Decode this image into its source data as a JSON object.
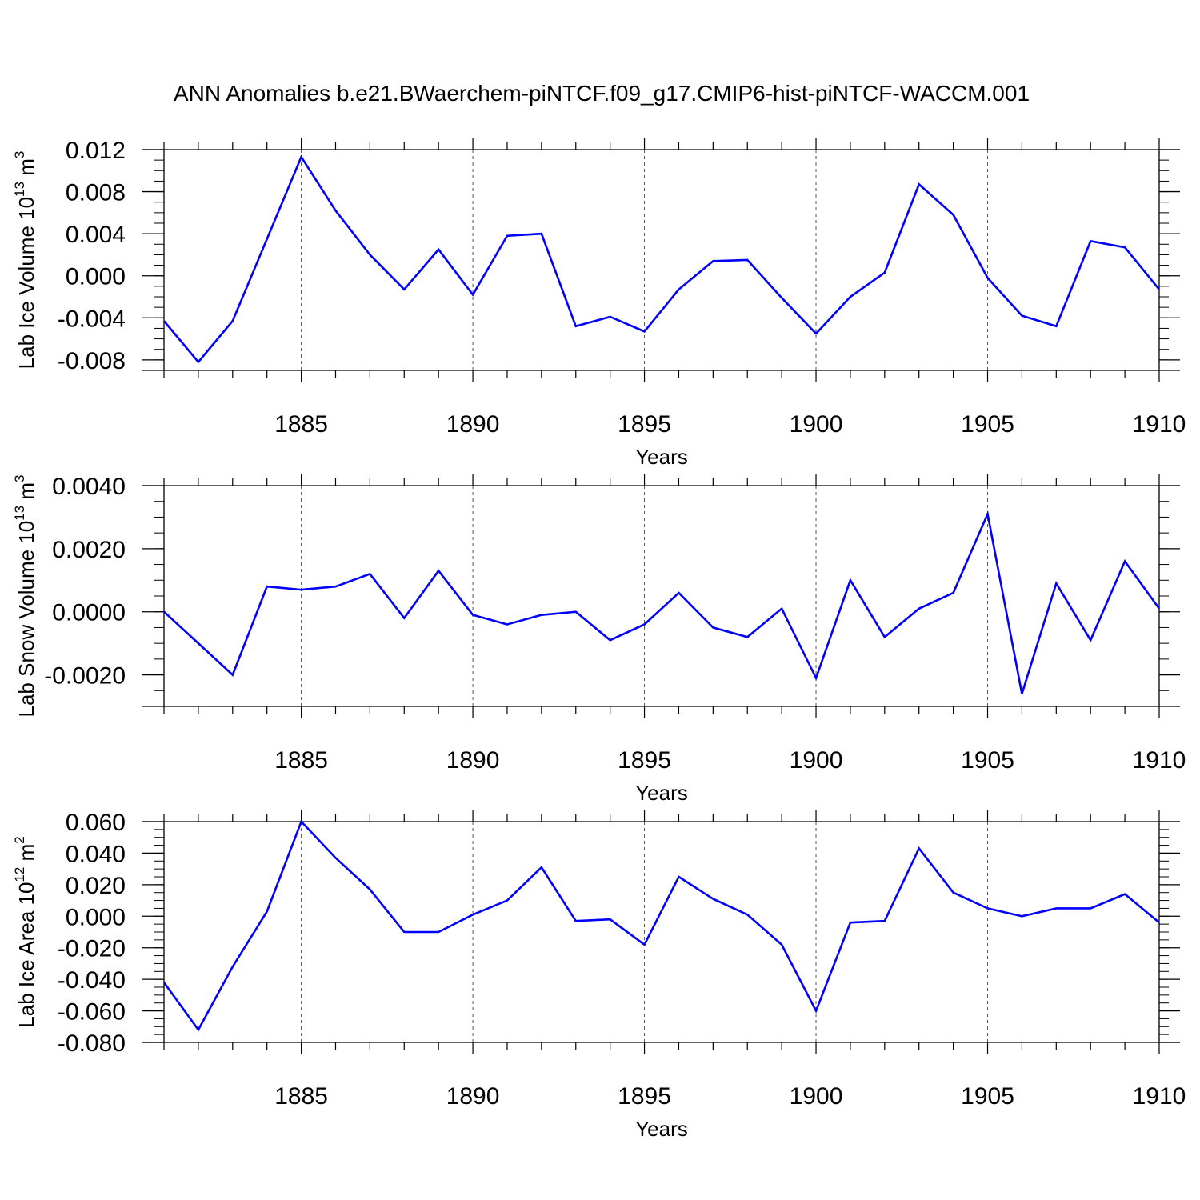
{
  "figure": {
    "title": "ANN Anomalies b.e21.BWaerchem-piNTCF.f09_g17.CMIP6-hist-piNTCF-WACCM.001",
    "colors": {
      "line": "#0000ff",
      "axes": "#000000",
      "grid": "#555555",
      "background": "#ffffff"
    }
  },
  "chart_data": [
    {
      "type": "line",
      "title": "",
      "xlabel": "Years",
      "ylabel": "Lab Ice Volume 10",
      "ylabel_exp": "13",
      "ylabel_unit": " m",
      "ylabel_unit_exp": "3",
      "xlim": [
        1881,
        1910
      ],
      "ylim": [
        -0.009,
        0.012
      ],
      "xticks": [
        1885,
        1890,
        1895,
        1900,
        1905,
        1910
      ],
      "xtick_labels": [
        "1885",
        "1890",
        "1895",
        "1900",
        "1905",
        "1910"
      ],
      "yticks": [
        -0.008,
        -0.004,
        0.0,
        0.004,
        0.008,
        0.012
      ],
      "ytick_labels": [
        "-0.008",
        "-0.004",
        "0.000",
        "0.004",
        "0.008",
        "0.012"
      ],
      "yminor_step": 0.001,
      "gridlines_x": [
        1885,
        1890,
        1895,
        1900,
        1905
      ],
      "x": [
        1881,
        1882,
        1883,
        1884,
        1885,
        1886,
        1887,
        1888,
        1889,
        1890,
        1891,
        1892,
        1893,
        1894,
        1895,
        1896,
        1897,
        1898,
        1899,
        1900,
        1901,
        1902,
        1903,
        1904,
        1905,
        1906,
        1907,
        1908,
        1909,
        1910
      ],
      "series": [
        {
          "name": "Lab Ice Volume",
          "values": [
            -0.0043,
            -0.0082,
            -0.0043,
            0.0035,
            0.0113,
            0.0062,
            0.002,
            -0.0013,
            0.0025,
            -0.0018,
            0.0038,
            0.004,
            -0.0048,
            -0.0039,
            -0.0053,
            -0.0013,
            0.0014,
            0.0015,
            -0.0021,
            -0.0055,
            -0.002,
            0.0003,
            0.0087,
            0.0058,
            -0.0002,
            -0.0038,
            -0.0048,
            0.0033,
            0.0027,
            -0.0013
          ]
        }
      ]
    },
    {
      "type": "line",
      "title": "",
      "xlabel": "Years",
      "ylabel": "Lab Snow Volume 10",
      "ylabel_exp": "13",
      "ylabel_unit": " m",
      "ylabel_unit_exp": "3",
      "xlim": [
        1881,
        1910
      ],
      "ylim": [
        -0.003,
        0.004
      ],
      "xticks": [
        1885,
        1890,
        1895,
        1900,
        1905,
        1910
      ],
      "xtick_labels": [
        "1885",
        "1890",
        "1895",
        "1900",
        "1905",
        "1910"
      ],
      "yticks": [
        -0.002,
        0.0,
        0.002,
        0.004
      ],
      "ytick_labels": [
        "-0.0020",
        "0.0000",
        "0.0020",
        "0.0040"
      ],
      "yminor_step": 0.0005,
      "gridlines_x": [
        1885,
        1890,
        1895,
        1900,
        1905
      ],
      "x": [
        1881,
        1882,
        1883,
        1884,
        1885,
        1886,
        1887,
        1888,
        1889,
        1890,
        1891,
        1892,
        1893,
        1894,
        1895,
        1896,
        1897,
        1898,
        1899,
        1900,
        1901,
        1902,
        1903,
        1904,
        1905,
        1906,
        1907,
        1908,
        1909,
        1910
      ],
      "series": [
        {
          "name": "Lab Snow Volume",
          "values": [
            0.0,
            -0.001,
            -0.002,
            0.0008,
            0.0007,
            0.0008,
            0.0012,
            -0.0002,
            0.0013,
            -0.0001,
            -0.0004,
            -0.0001,
            0.0,
            -0.0009,
            -0.0004,
            0.0006,
            -0.0005,
            -0.0008,
            0.0001,
            -0.0021,
            0.001,
            -0.0008,
            0.0001,
            0.0006,
            0.0031,
            -0.0026,
            0.0009,
            -0.0009,
            0.0016,
            0.0001
          ]
        }
      ]
    },
    {
      "type": "line",
      "title": "",
      "xlabel": "Years",
      "ylabel": "Lab Ice Area 10",
      "ylabel_exp": "12",
      "ylabel_unit": " m",
      "ylabel_unit_exp": "2",
      "xlim": [
        1881,
        1910
      ],
      "ylim": [
        -0.08,
        0.06
      ],
      "xticks": [
        1885,
        1890,
        1895,
        1900,
        1905,
        1910
      ],
      "xtick_labels": [
        "1885",
        "1890",
        "1895",
        "1900",
        "1905",
        "1910"
      ],
      "yticks": [
        -0.08,
        -0.06,
        -0.04,
        -0.02,
        0.0,
        0.02,
        0.04,
        0.06
      ],
      "ytick_labels": [
        "-0.080",
        "-0.060",
        "-0.040",
        "-0.020",
        "0.000",
        "0.020",
        "0.040",
        "0.060"
      ],
      "yminor_step": 0.005,
      "gridlines_x": [
        1885,
        1890,
        1895,
        1900,
        1905
      ],
      "x": [
        1881,
        1882,
        1883,
        1884,
        1885,
        1886,
        1887,
        1888,
        1889,
        1890,
        1891,
        1892,
        1893,
        1894,
        1895,
        1896,
        1897,
        1898,
        1899,
        1900,
        1901,
        1902,
        1903,
        1904,
        1905,
        1906,
        1907,
        1908,
        1909,
        1910
      ],
      "series": [
        {
          "name": "Lab Ice Area",
          "values": [
            -0.042,
            -0.072,
            -0.032,
            0.003,
            0.06,
            0.037,
            0.017,
            -0.01,
            -0.01,
            0.001,
            0.01,
            0.031,
            -0.003,
            -0.002,
            -0.018,
            0.025,
            0.011,
            0.001,
            -0.018,
            -0.06,
            -0.004,
            -0.003,
            0.043,
            0.015,
            0.005,
            0.0,
            0.005,
            0.005,
            0.014,
            -0.004
          ]
        }
      ]
    }
  ]
}
